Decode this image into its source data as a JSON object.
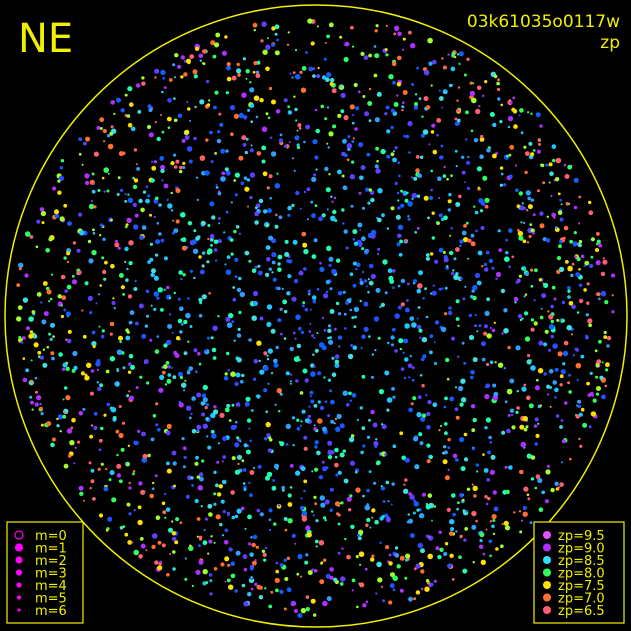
{
  "header": {
    "label": "NE",
    "image_id": "03k61035o0117w",
    "quantity": "zp"
  },
  "magnitude_legend": {
    "color": "#ff00ff",
    "items": [
      "m=0",
      "m=1",
      "m=2",
      "m=3",
      "m=4",
      "m=5",
      "m=6"
    ]
  },
  "zp_legend": {
    "items": [
      {
        "label": "zp=9.5",
        "color": "#e055ff"
      },
      {
        "label": "zp=9.0",
        "color": "#b030ff"
      },
      {
        "label": "zp=8.5",
        "color": "#30e0ff"
      },
      {
        "label": "zp=8.0",
        "color": "#30ff60"
      },
      {
        "label": "zp=7.5",
        "color": "#ffe000"
      },
      {
        "label": "zp=7.0",
        "color": "#ff7030"
      },
      {
        "label": "zp=6.5",
        "color": "#ff6070"
      }
    ]
  }
}
